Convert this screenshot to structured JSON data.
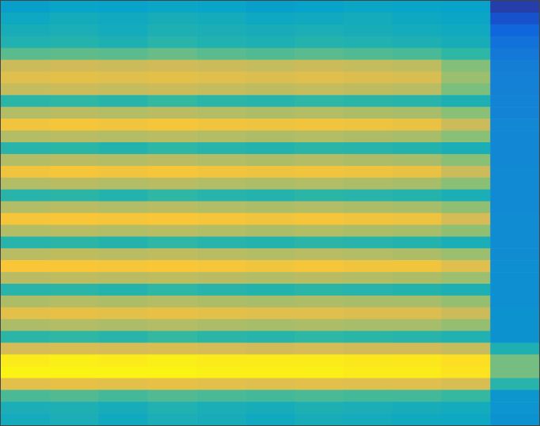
{
  "chart_data": {
    "type": "heatmap",
    "tick_labels": false,
    "xlim": [
      0,
      11
    ],
    "ylim": [
      0,
      36
    ],
    "zlim": [
      0,
      10
    ],
    "cells": [
      [
        3.6,
        3.8,
        3.7,
        3.9,
        3.8,
        3.6,
        3.7,
        3.9,
        3.8,
        3.7,
        0.5
      ],
      [
        4.0,
        4.2,
        4.1,
        4.3,
        4.2,
        4.0,
        4.1,
        4.2,
        4.0,
        3.9,
        1.0
      ],
      [
        4.3,
        4.4,
        4.2,
        4.5,
        4.4,
        4.3,
        4.4,
        4.3,
        4.2,
        4.1,
        1.6
      ],
      [
        4.6,
        4.7,
        4.5,
        4.8,
        4.6,
        4.5,
        4.7,
        4.6,
        4.5,
        4.3,
        2.0
      ],
      [
        5.6,
        5.7,
        5.6,
        5.8,
        5.6,
        5.5,
        5.6,
        5.5,
        5.4,
        5.0,
        2.2
      ],
      [
        7.4,
        7.5,
        7.4,
        7.5,
        7.4,
        7.3,
        7.4,
        7.3,
        7.2,
        6.2,
        2.4
      ],
      [
        7.9,
        8.0,
        7.9,
        8.0,
        7.9,
        7.8,
        7.9,
        7.8,
        7.7,
        6.6,
        2.5
      ],
      [
        7.3,
        7.4,
        7.3,
        7.4,
        7.3,
        7.2,
        7.3,
        7.2,
        7.1,
        6.1,
        2.5
      ],
      [
        4.9,
        5.0,
        4.8,
        5.1,
        4.9,
        4.8,
        5.0,
        4.9,
        4.8,
        4.5,
        2.6
      ],
      [
        7.0,
        7.1,
        7.0,
        7.1,
        7.0,
        6.9,
        7.0,
        6.9,
        6.8,
        6.3,
        2.6
      ],
      [
        8.4,
        8.5,
        8.4,
        8.5,
        8.4,
        8.3,
        8.4,
        8.3,
        8.2,
        7.4,
        2.7
      ],
      [
        7.0,
        7.1,
        7.0,
        7.1,
        7.0,
        6.9,
        7.0,
        6.9,
        6.8,
        6.3,
        2.7
      ],
      [
        4.8,
        4.9,
        4.7,
        5.0,
        4.8,
        4.7,
        4.9,
        4.8,
        4.7,
        4.4,
        2.7
      ],
      [
        7.0,
        7.1,
        7.0,
        7.1,
        7.0,
        6.9,
        7.0,
        6.9,
        6.8,
        6.3,
        2.7
      ],
      [
        8.4,
        8.5,
        8.4,
        8.5,
        8.4,
        8.3,
        8.4,
        8.3,
        8.2,
        7.4,
        2.8
      ],
      [
        7.0,
        7.1,
        7.0,
        7.1,
        7.0,
        6.9,
        7.0,
        6.9,
        6.8,
        6.3,
        2.8
      ],
      [
        4.8,
        4.9,
        4.7,
        5.0,
        4.8,
        4.7,
        4.9,
        4.8,
        4.7,
        4.4,
        2.8
      ],
      [
        7.0,
        7.1,
        7.0,
        7.1,
        7.0,
        6.9,
        7.0,
        6.9,
        6.8,
        6.4,
        2.8
      ],
      [
        8.5,
        8.6,
        8.5,
        8.6,
        8.5,
        8.4,
        8.5,
        8.4,
        8.3,
        7.6,
        2.9
      ],
      [
        7.0,
        7.1,
        7.0,
        7.1,
        7.0,
        6.9,
        7.0,
        6.9,
        6.8,
        6.4,
        2.9
      ],
      [
        4.8,
        4.9,
        4.7,
        5.0,
        4.8,
        4.7,
        4.9,
        4.8,
        4.7,
        4.4,
        2.9
      ],
      [
        7.1,
        7.2,
        7.1,
        7.2,
        7.1,
        7.0,
        7.1,
        7.0,
        6.9,
        6.6,
        2.9
      ],
      [
        8.6,
        8.6,
        8.5,
        8.6,
        8.5,
        8.4,
        8.5,
        8.4,
        8.4,
        7.9,
        3.0
      ],
      [
        7.1,
        7.2,
        7.1,
        7.2,
        7.1,
        7.0,
        7.1,
        7.0,
        6.9,
        6.6,
        3.0
      ],
      [
        4.8,
        4.9,
        4.7,
        5.0,
        4.8,
        4.7,
        4.9,
        4.8,
        4.7,
        4.5,
        3.0
      ],
      [
        6.9,
        7.0,
        6.9,
        7.0,
        6.9,
        6.8,
        6.9,
        6.8,
        6.8,
        6.5,
        3.0
      ],
      [
        8.0,
        8.1,
        8.0,
        8.1,
        8.0,
        7.9,
        7.9,
        7.8,
        7.8,
        7.4,
        3.1
      ],
      [
        6.9,
        7.0,
        6.9,
        7.0,
        6.9,
        6.8,
        6.9,
        6.8,
        6.8,
        6.5,
        3.1
      ],
      [
        4.9,
        5.0,
        4.8,
        5.1,
        4.9,
        4.8,
        5.0,
        4.9,
        4.8,
        4.6,
        3.1
      ],
      [
        7.6,
        7.7,
        7.6,
        7.7,
        7.6,
        7.5,
        7.6,
        7.5,
        7.5,
        7.3,
        4.5
      ],
      [
        9.6,
        9.7,
        9.6,
        9.7,
        9.6,
        9.6,
        9.6,
        9.5,
        9.5,
        9.3,
        6.0
      ],
      [
        9.8,
        9.8,
        9.8,
        9.8,
        9.7,
        9.7,
        9.7,
        9.6,
        9.6,
        9.4,
        6.0
      ],
      [
        8.0,
        8.1,
        8.0,
        8.1,
        8.0,
        7.9,
        8.0,
        7.9,
        7.9,
        7.7,
        4.8
      ],
      [
        5.4,
        5.5,
        5.3,
        5.5,
        5.4,
        5.3,
        5.4,
        5.3,
        5.3,
        5.1,
        3.3
      ],
      [
        4.4,
        4.5,
        4.3,
        4.6,
        4.4,
        4.3,
        4.5,
        4.4,
        4.3,
        4.2,
        3.2
      ],
      [
        4.2,
        4.4,
        4.1,
        4.4,
        4.3,
        4.1,
        4.3,
        4.2,
        4.1,
        4.0,
        3.1
      ]
    ]
  }
}
